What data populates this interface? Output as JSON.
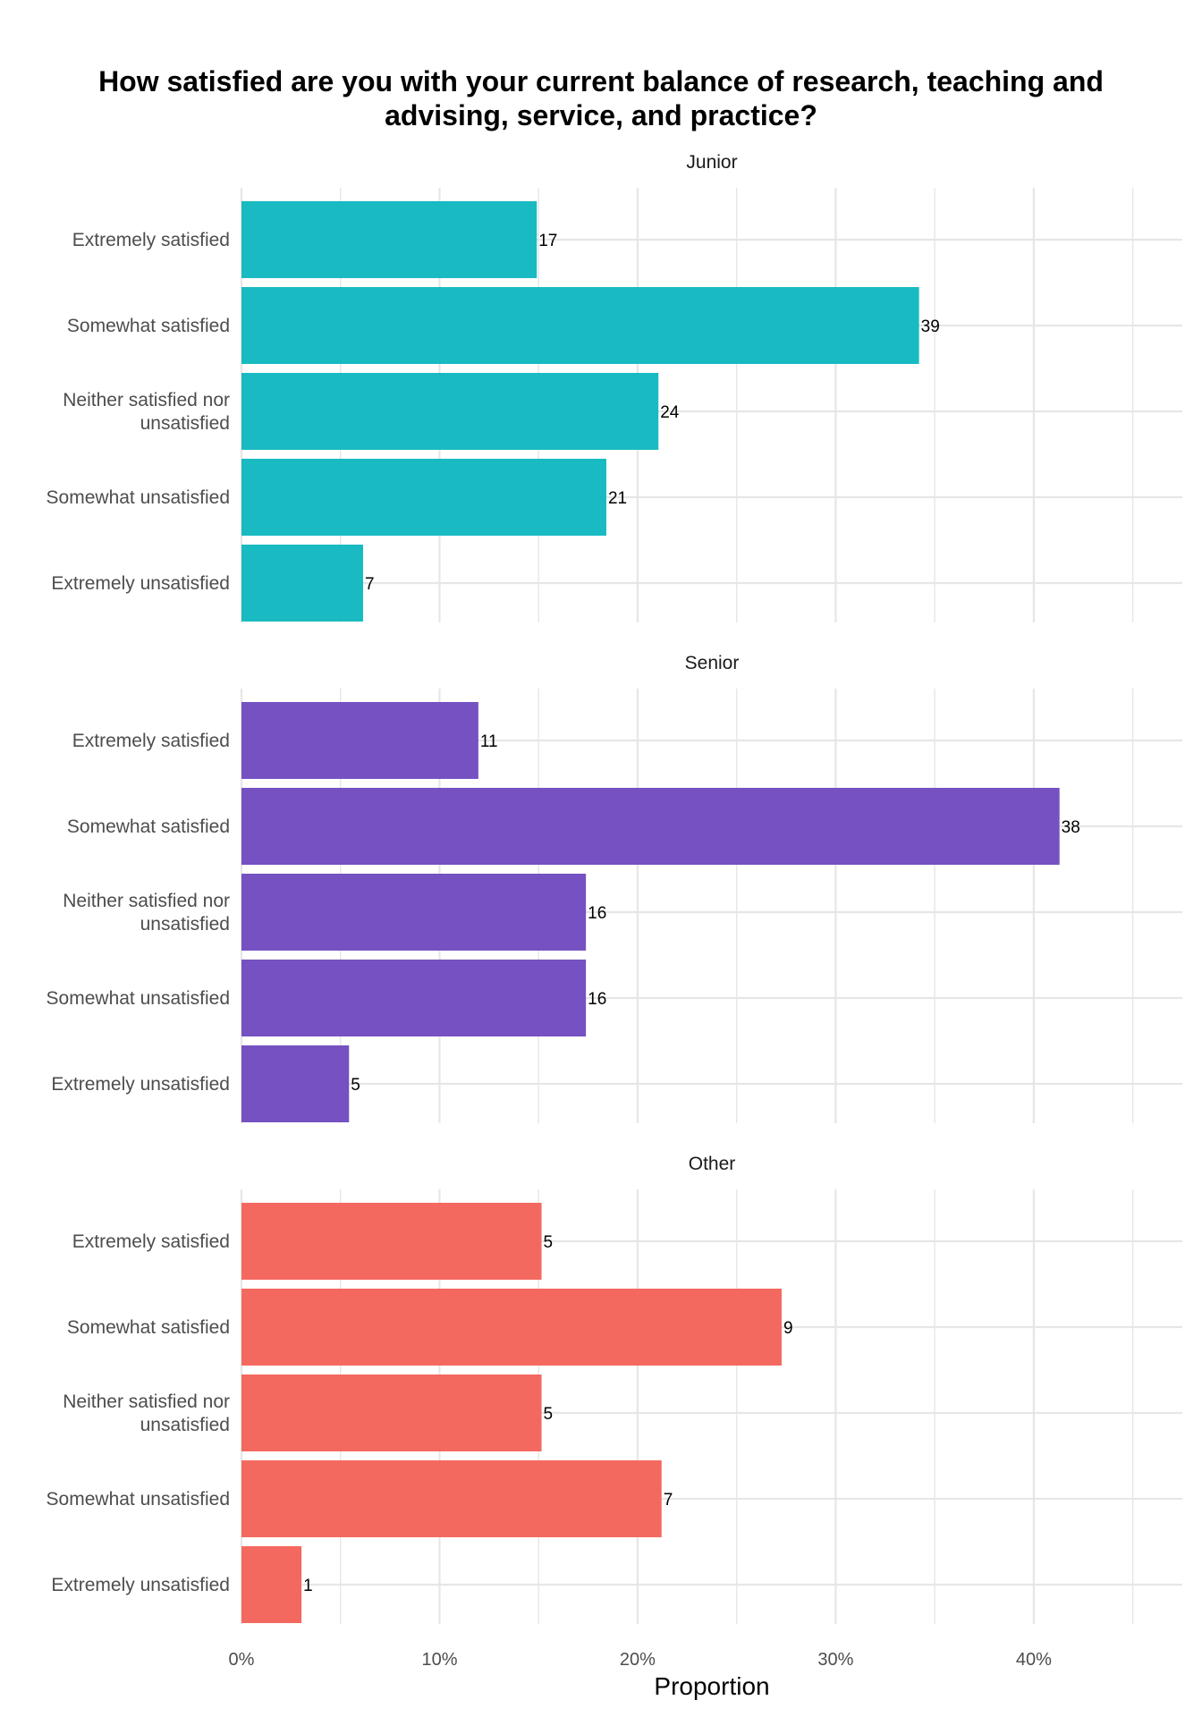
{
  "chart_data": {
    "type": "bar",
    "title_lines": [
      "How satisfied are you with your current balance of research, teaching and",
      "advising, service, and practice?"
    ],
    "xlabel": "Proportion",
    "ylabel": "",
    "xlim": [
      0,
      0.475
    ],
    "x_ticks": [
      0,
      0.1,
      0.2,
      0.3,
      0.4
    ],
    "x_tick_labels": [
      "0%",
      "10%",
      "20%",
      "30%",
      "40%"
    ],
    "grid": true,
    "categories": [
      [
        "Extremely satisfied"
      ],
      [
        "Somewhat satisfied"
      ],
      [
        "Neither satisfied nor",
        "unsatisfied"
      ],
      [
        "Somewhat unsatisfied"
      ],
      [
        "Extremely unsatisfied"
      ]
    ],
    "series": [
      {
        "name": "Junior",
        "color": "#19BAC2",
        "proportions": [
          0.1491,
          0.3421,
          0.2105,
          0.1842,
          0.0614
        ],
        "counts": [
          "17",
          "39",
          "24",
          "21",
          "7"
        ]
      },
      {
        "name": "Senior",
        "color": "#7651C1",
        "proportions": [
          0.1196,
          0.413,
          0.1739,
          0.1739,
          0.0543
        ],
        "counts": [
          "11",
          "38",
          "16",
          "16",
          "5"
        ]
      },
      {
        "name": "Other",
        "color": "#F4695F",
        "proportions": [
          0.1515,
          0.2727,
          0.1515,
          0.2121,
          0.0303
        ],
        "counts": [
          "5",
          "9",
          "5",
          "7",
          "1"
        ]
      }
    ]
  }
}
